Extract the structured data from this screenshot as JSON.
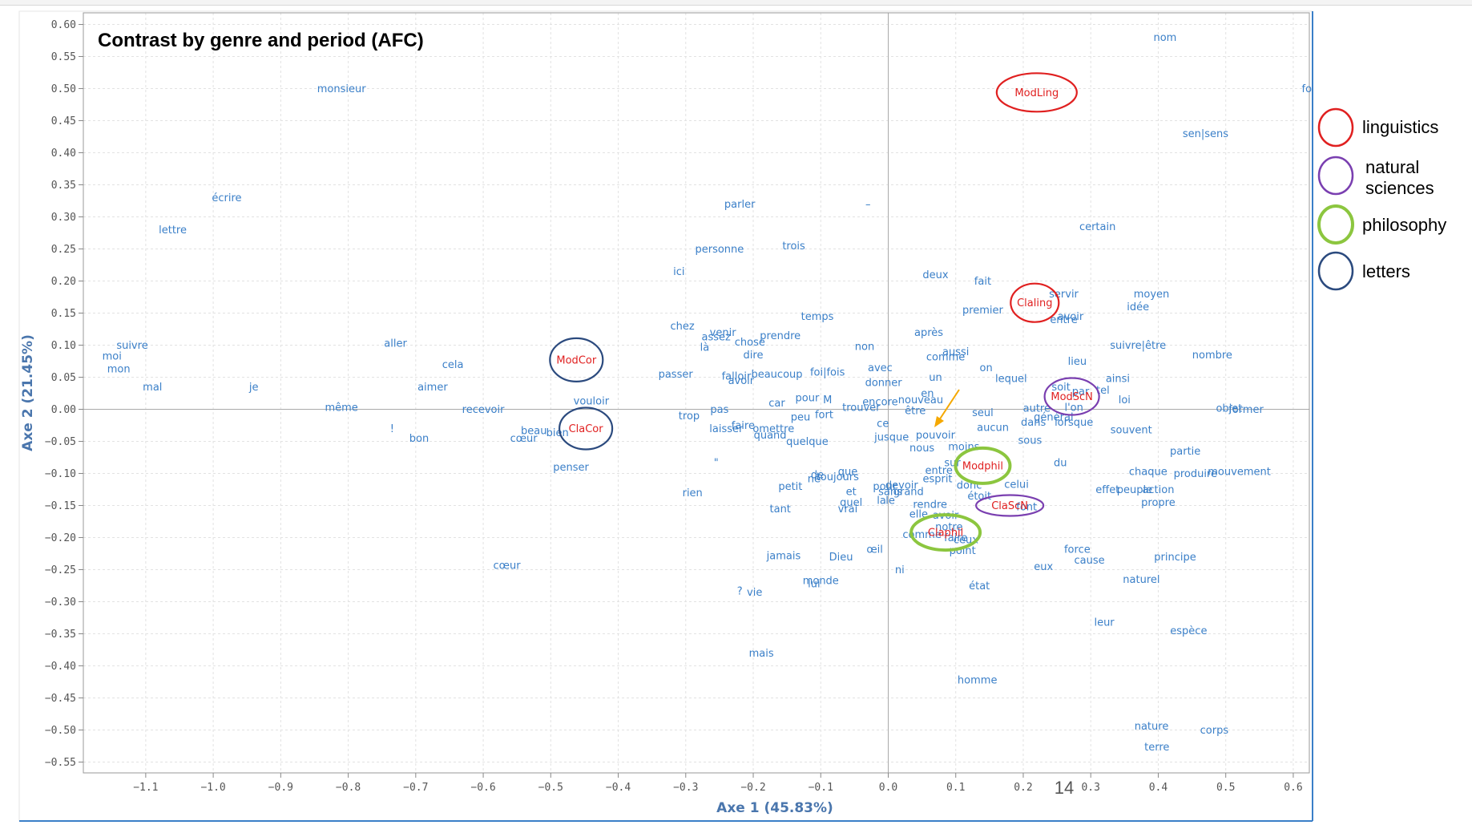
{
  "chart_data": {
    "type": "scatter",
    "title": "Contrast by genre and period (AFC)",
    "xlabel": "Axe 1 (45.83%)",
    "ylabel": "Axe 2 (21.45%)",
    "xlim": [
      -1.2,
      0.62
    ],
    "ylim": [
      -0.57,
      0.61
    ],
    "x_ticks": [
      -1.1,
      -1.0,
      -0.9,
      -0.8,
      -0.7,
      -0.6,
      -0.5,
      -0.4,
      -0.3,
      -0.2,
      -0.1,
      0.0,
      0.1,
      0.2,
      0.3,
      0.4,
      0.5,
      0.6
    ],
    "y_ticks": [
      0.6,
      0.55,
      0.5,
      0.45,
      0.4,
      0.35,
      0.3,
      0.25,
      0.2,
      0.15,
      0.1,
      0.05,
      0.0,
      -0.05,
      -0.1,
      -0.15,
      -0.2,
      -0.25,
      -0.3,
      -0.35,
      -0.4,
      -0.45,
      -0.5,
      -0.55
    ],
    "grid": true,
    "legend_position": "right",
    "colors": {
      "word": "#3a7fc8",
      "corpus": "#e02020",
      "axis_title": "#4a76ad",
      "grid": "#e2e2e2",
      "zero_line": "#aaaaaa",
      "arrow": "#f5a800"
    },
    "words": [
      {
        "t": "nom",
        "x": 0.41,
        "y": 0.58
      },
      {
        "t": "monsieur",
        "x": -0.81,
        "y": 0.5
      },
      {
        "t": "fo",
        "x": 0.62,
        "y": 0.5
      },
      {
        "t": "sen|sens",
        "x": 0.47,
        "y": 0.43
      },
      {
        "t": "écrire",
        "x": -0.98,
        "y": 0.33
      },
      {
        "t": "parler",
        "x": -0.22,
        "y": 0.32
      },
      {
        "t": "–",
        "x": -0.03,
        "y": 0.32
      },
      {
        "t": "lettre",
        "x": -1.06,
        "y": 0.28
      },
      {
        "t": "certain",
        "x": 0.31,
        "y": 0.285
      },
      {
        "t": "personne",
        "x": -0.25,
        "y": 0.25
      },
      {
        "t": "trois",
        "x": -0.14,
        "y": 0.255
      },
      {
        "t": "ici",
        "x": -0.31,
        "y": 0.215
      },
      {
        "t": "deux",
        "x": 0.07,
        "y": 0.21
      },
      {
        "t": "fait",
        "x": 0.14,
        "y": 0.2
      },
      {
        "t": "servir",
        "x": 0.26,
        "y": 0.18
      },
      {
        "t": "moyen",
        "x": 0.39,
        "y": 0.18
      },
      {
        "t": "idée",
        "x": 0.37,
        "y": 0.16
      },
      {
        "t": "premier",
        "x": 0.14,
        "y": 0.155
      },
      {
        "t": "avoir",
        "x": 0.27,
        "y": 0.145
      },
      {
        "t": "entre",
        "x": 0.26,
        "y": 0.14
      },
      {
        "t": "temps",
        "x": -0.105,
        "y": 0.145
      },
      {
        "t": "chez",
        "x": -0.305,
        "y": 0.13
      },
      {
        "t": "venir",
        "x": -0.245,
        "y": 0.12
      },
      {
        "t": "assez",
        "x": -0.255,
        "y": 0.113
      },
      {
        "t": "prendre",
        "x": -0.16,
        "y": 0.115
      },
      {
        "t": "après",
        "x": 0.06,
        "y": 0.12
      },
      {
        "t": "chose",
        "x": -0.205,
        "y": 0.105
      },
      {
        "t": "là",
        "x": -0.272,
        "y": 0.097
      },
      {
        "t": "non",
        "x": -0.035,
        "y": 0.098
      },
      {
        "t": "aussi",
        "x": 0.1,
        "y": 0.09
      },
      {
        "t": "suivre|être",
        "x": 0.37,
        "y": 0.1
      },
      {
        "t": "suivre",
        "x": -1.12,
        "y": 0.1
      },
      {
        "t": "aller",
        "x": -0.73,
        "y": 0.103
      },
      {
        "t": "moi",
        "x": -1.15,
        "y": 0.083
      },
      {
        "t": "dire",
        "x": -0.2,
        "y": 0.085
      },
      {
        "t": "comme",
        "x": 0.085,
        "y": 0.082
      },
      {
        "t": "nombre",
        "x": 0.48,
        "y": 0.085
      },
      {
        "t": "cela",
        "x": -0.645,
        "y": 0.07
      },
      {
        "t": "lieu",
        "x": 0.28,
        "y": 0.075
      },
      {
        "t": "mon",
        "x": -1.14,
        "y": 0.063
      },
      {
        "t": "passer",
        "x": -0.315,
        "y": 0.055
      },
      {
        "t": "falloir",
        "x": -0.225,
        "y": 0.052
      },
      {
        "t": "avoir",
        "x": -0.218,
        "y": 0.045
      },
      {
        "t": "beaucoup",
        "x": -0.165,
        "y": 0.055
      },
      {
        "t": "foi|fois",
        "x": -0.09,
        "y": 0.058
      },
      {
        "t": "avec",
        "x": -0.012,
        "y": 0.065
      },
      {
        "t": "on",
        "x": 0.145,
        "y": 0.065
      },
      {
        "t": "un",
        "x": 0.07,
        "y": 0.05
      },
      {
        "t": "lequel",
        "x": 0.182,
        "y": 0.048
      },
      {
        "t": "ainsi",
        "x": 0.34,
        "y": 0.048
      },
      {
        "t": "donner",
        "x": -0.007,
        "y": 0.042
      },
      {
        "t": "mal",
        "x": -1.09,
        "y": 0.035
      },
      {
        "t": "je",
        "x": -0.94,
        "y": 0.035
      },
      {
        "t": "aimer",
        "x": -0.675,
        "y": 0.035
      },
      {
        "t": "soit",
        "x": 0.256,
        "y": 0.035
      },
      {
        "t": "par",
        "x": 0.285,
        "y": 0.028
      },
      {
        "t": "tel",
        "x": 0.318,
        "y": 0.03
      },
      {
        "t": "en",
        "x": 0.058,
        "y": 0.025
      },
      {
        "t": "vouloir",
        "x": -0.44,
        "y": 0.013
      },
      {
        "t": "car",
        "x": -0.165,
        "y": 0.01
      },
      {
        "t": "pour",
        "x": -0.12,
        "y": 0.018
      },
      {
        "t": "M",
        "x": -0.09,
        "y": 0.015
      },
      {
        "t": "encore",
        "x": -0.012,
        "y": 0.012
      },
      {
        "t": "nouveau",
        "x": 0.048,
        "y": 0.015
      },
      {
        "t": "loi",
        "x": 0.35,
        "y": 0.015
      },
      {
        "t": "même",
        "x": -0.81,
        "y": 0.003
      },
      {
        "t": "recevoir",
        "x": -0.6,
        "y": 0.0
      },
      {
        "t": "pas",
        "x": -0.25,
        "y": 0.0
      },
      {
        "t": "trouver",
        "x": -0.04,
        "y": 0.003
      },
      {
        "t": "être",
        "x": 0.04,
        "y": -0.002
      },
      {
        "t": "autre",
        "x": 0.22,
        "y": 0.002
      },
      {
        "t": "l'on",
        "x": 0.275,
        "y": 0.003
      },
      {
        "t": "objet",
        "x": 0.505,
        "y": 0.002
      },
      {
        "t": "former",
        "x": 0.53,
        "y": 0.0
      },
      {
        "t": "trop",
        "x": -0.295,
        "y": -0.01
      },
      {
        "t": "peu",
        "x": -0.13,
        "y": -0.012
      },
      {
        "t": "fort",
        "x": -0.095,
        "y": -0.008
      },
      {
        "t": "seul",
        "x": 0.14,
        "y": -0.005
      },
      {
        "t": "général",
        "x": 0.245,
        "y": -0.012
      },
      {
        "t": "dans",
        "x": 0.215,
        "y": -0.02
      },
      {
        "t": "lorsque",
        "x": 0.275,
        "y": -0.02
      },
      {
        "t": "ce",
        "x": -0.008,
        "y": -0.022
      },
      {
        "t": "aucun",
        "x": 0.155,
        "y": -0.028
      },
      {
        "t": "!",
        "x": -0.735,
        "y": -0.03
      },
      {
        "t": "beau",
        "x": -0.525,
        "y": -0.033
      },
      {
        "t": "bien",
        "x": -0.49,
        "y": -0.036
      },
      {
        "t": "laisser",
        "x": -0.24,
        "y": -0.03
      },
      {
        "t": "faire",
        "x": -0.215,
        "y": -0.025
      },
      {
        "t": "omettre",
        "x": -0.17,
        "y": -0.03
      },
      {
        "t": "souvent",
        "x": 0.36,
        "y": -0.032
      },
      {
        "t": "quand",
        "x": -0.175,
        "y": -0.04
      },
      {
        "t": "jusque",
        "x": 0.005,
        "y": -0.043
      },
      {
        "t": "pouvoir",
        "x": 0.07,
        "y": -0.04
      },
      {
        "t": "bon",
        "x": -0.695,
        "y": -0.045
      },
      {
        "t": "cœur",
        "x": -0.54,
        "y": -0.045
      },
      {
        "t": "quelque",
        "x": -0.12,
        "y": -0.05
      },
      {
        "t": "sous",
        "x": 0.21,
        "y": -0.048
      },
      {
        "t": "nous",
        "x": 0.05,
        "y": -0.06
      },
      {
        "t": "moins",
        "x": 0.112,
        "y": -0.058
      },
      {
        "t": "partie",
        "x": 0.44,
        "y": -0.065
      },
      {
        "t": "penser",
        "x": -0.47,
        "y": -0.09
      },
      {
        "t": "\"",
        "x": -0.255,
        "y": -0.083
      },
      {
        "t": "du",
        "x": 0.255,
        "y": -0.083
      },
      {
        "t": "sur",
        "x": 0.095,
        "y": -0.083
      },
      {
        "t": "entre",
        "x": 0.075,
        "y": -0.095
      },
      {
        "t": "esprit",
        "x": 0.073,
        "y": -0.108
      },
      {
        "t": "chaque",
        "x": 0.385,
        "y": -0.097
      },
      {
        "t": "produire",
        "x": 0.455,
        "y": -0.1
      },
      {
        "t": "mouvement",
        "x": 0.52,
        "y": -0.097
      },
      {
        "t": "que",
        "x": -0.06,
        "y": -0.097
      },
      {
        "t": "de",
        "x": -0.105,
        "y": -0.102
      },
      {
        "t": "toujours",
        "x": -0.075,
        "y": -0.105
      },
      {
        "t": "ne",
        "x": -0.11,
        "y": -0.108
      },
      {
        "t": "donc",
        "x": 0.12,
        "y": -0.118
      },
      {
        "t": "celui",
        "x": 0.19,
        "y": -0.117
      },
      {
        "t": "petit",
        "x": -0.145,
        "y": -0.12
      },
      {
        "t": "devoir",
        "x": 0.02,
        "y": -0.118
      },
      {
        "t": "pour",
        "x": -0.005,
        "y": -0.12
      },
      {
        "t": "rien",
        "x": -0.29,
        "y": -0.13
      },
      {
        "t": "et",
        "x": -0.055,
        "y": -0.128
      },
      {
        "t": "sans",
        "x": 0.003,
        "y": -0.128
      },
      {
        "t": "grand",
        "x": 0.03,
        "y": -0.128
      },
      {
        "t": "étoit",
        "x": 0.135,
        "y": -0.135
      },
      {
        "t": "effet",
        "x": 0.325,
        "y": -0.125
      },
      {
        "t": "peuple",
        "x": 0.365,
        "y": -0.125
      },
      {
        "t": "action",
        "x": 0.4,
        "y": -0.125
      },
      {
        "t": "la",
        "x": -0.01,
        "y": -0.142
      },
      {
        "t": "le",
        "x": 0.003,
        "y": -0.142
      },
      {
        "t": "quel",
        "x": -0.055,
        "y": -0.145
      },
      {
        "t": "rendre",
        "x": 0.062,
        "y": -0.148
      },
      {
        "t": "propre",
        "x": 0.4,
        "y": -0.145
      },
      {
        "t": "tant",
        "x": -0.16,
        "y": -0.155
      },
      {
        "t": "vrai",
        "x": -0.06,
        "y": -0.155
      },
      {
        "t": "font",
        "x": 0.205,
        "y": -0.152
      },
      {
        "t": "elle",
        "x": 0.045,
        "y": -0.163
      },
      {
        "t": "avoir",
        "x": 0.085,
        "y": -0.165
      },
      {
        "t": "notre",
        "x": 0.09,
        "y": -0.183
      },
      {
        "t": "comme",
        "x": 0.05,
        "y": -0.195
      },
      {
        "t": "faire",
        "x": 0.1,
        "y": -0.2
      },
      {
        "t": "ceux",
        "x": 0.115,
        "y": -0.203
      },
      {
        "t": "œil",
        "x": -0.02,
        "y": -0.218
      },
      {
        "t": "point",
        "x": 0.11,
        "y": -0.22
      },
      {
        "t": "force",
        "x": 0.28,
        "y": -0.218
      },
      {
        "t": "jamais",
        "x": -0.155,
        "y": -0.228
      },
      {
        "t": "Dieu",
        "x": -0.07,
        "y": -0.23
      },
      {
        "t": "cause",
        "x": 0.298,
        "y": -0.235
      },
      {
        "t": "principe",
        "x": 0.425,
        "y": -0.23
      },
      {
        "t": "cœur",
        "x": -0.565,
        "y": -0.243
      },
      {
        "t": "ni",
        "x": 0.017,
        "y": -0.25
      },
      {
        "t": "eux",
        "x": 0.23,
        "y": -0.245
      },
      {
        "t": "naturel",
        "x": 0.375,
        "y": -0.265
      },
      {
        "t": "monde",
        "x": -0.1,
        "y": -0.267
      },
      {
        "t": "lui",
        "x": -0.11,
        "y": -0.272
      },
      {
        "t": "état",
        "x": 0.135,
        "y": -0.275
      },
      {
        "t": "?",
        "x": -0.22,
        "y": -0.283
      },
      {
        "t": "vie",
        "x": -0.198,
        "y": -0.285
      },
      {
        "t": "leur",
        "x": 0.32,
        "y": -0.332
      },
      {
        "t": "espèce",
        "x": 0.445,
        "y": -0.345
      },
      {
        "t": "mais",
        "x": -0.188,
        "y": -0.38
      },
      {
        "t": "homme",
        "x": 0.132,
        "y": -0.422
      },
      {
        "t": "nature",
        "x": 0.39,
        "y": -0.494
      },
      {
        "t": "corps",
        "x": 0.483,
        "y": -0.5
      },
      {
        "t": "terre",
        "x": 0.398,
        "y": -0.526
      }
    ],
    "corpora": [
      {
        "t": "ModLing",
        "x": 0.22,
        "y": 0.494,
        "group": "linguistics"
      },
      {
        "t": "Claling",
        "x": 0.217,
        "y": 0.166,
        "group": "linguistics"
      },
      {
        "t": "ModCor",
        "x": -0.462,
        "y": 0.077,
        "group": "letters"
      },
      {
        "t": "ClaCor",
        "x": -0.448,
        "y": -0.03,
        "group": "letters"
      },
      {
        "t": "ModScN",
        "x": 0.272,
        "y": 0.02,
        "group": "natural sciences"
      },
      {
        "t": "ClaScN",
        "x": 0.18,
        "y": -0.15,
        "group": "natural sciences"
      },
      {
        "t": "Modphil",
        "x": 0.14,
        "y": -0.088,
        "group": "philosophy"
      },
      {
        "t": "Claphil",
        "x": 0.085,
        "y": -0.192,
        "group": "philosophy"
      }
    ],
    "legend": [
      {
        "label": "linguistics",
        "color": "#e02020"
      },
      {
        "label": "natural sciences",
        "color": "#7a3fb0"
      },
      {
        "label": "philosophy",
        "color": "#8cc63f"
      },
      {
        "label": "letters",
        "color": "#2b4a7e"
      }
    ],
    "page_number": "14"
  }
}
